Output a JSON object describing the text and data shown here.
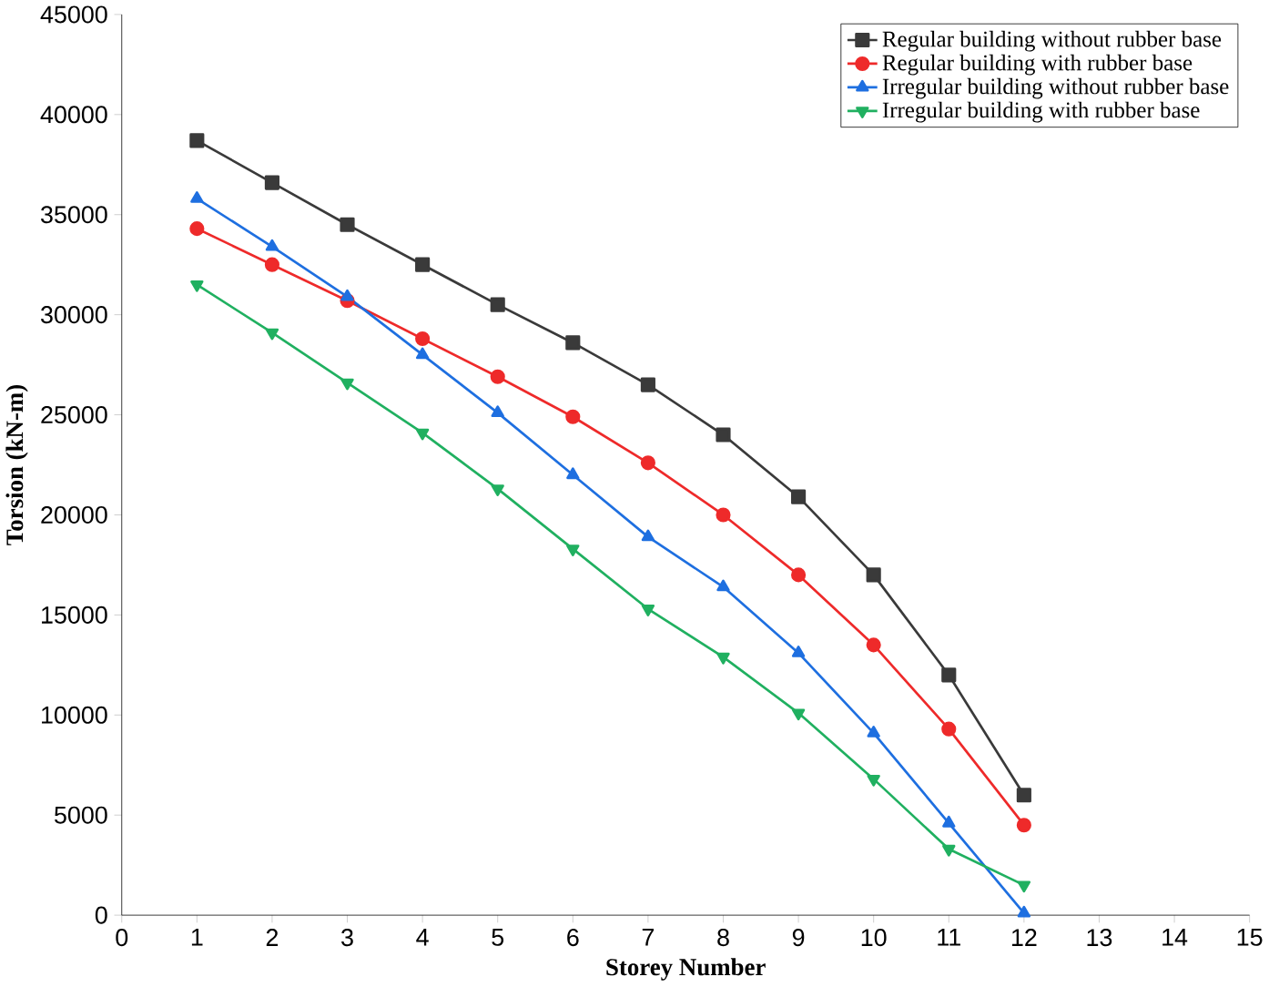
{
  "chart_data": {
    "type": "line",
    "xlabel": "Storey Number",
    "ylabel": "Torsion (kN-m)",
    "x": [
      1,
      2,
      3,
      4,
      5,
      6,
      7,
      8,
      9,
      10,
      11,
      12
    ],
    "xlim": [
      0,
      15
    ],
    "xticks": [
      0,
      1,
      2,
      3,
      4,
      5,
      6,
      7,
      8,
      9,
      10,
      11,
      12,
      13,
      14,
      15
    ],
    "ylim": [
      0,
      45000
    ],
    "yticks": [
      0,
      5000,
      10000,
      15000,
      20000,
      25000,
      30000,
      35000,
      40000,
      45000
    ],
    "legend": "top right",
    "grid": false,
    "line_style": "solid",
    "series": [
      {
        "name": "Regular building without rubber base",
        "color": "#3a3a3a",
        "marker": "square",
        "values": [
          38700,
          36600,
          34500,
          32500,
          30500,
          28600,
          26500,
          24000,
          20900,
          17000,
          12000,
          6000
        ]
      },
      {
        "name": "Regular building with rubber base",
        "color": "#ee2a2a",
        "marker": "circle",
        "values": [
          34300,
          32500,
          30700,
          28800,
          26900,
          24900,
          22600,
          20000,
          17000,
          13500,
          9300,
          4500
        ]
      },
      {
        "name": "Irregular building without rubber base",
        "color": "#1e6fe0",
        "marker": "triangle",
        "values": [
          35800,
          33400,
          30900,
          28000,
          25100,
          22000,
          18900,
          16400,
          13100,
          9100,
          4600,
          100
        ]
      },
      {
        "name": "Irregular building with rubber base",
        "color": "#20b060",
        "marker": "triangle down",
        "values": [
          31500,
          29100,
          26600,
          24100,
          21300,
          18300,
          15300,
          12900,
          10100,
          6800,
          3300,
          1500
        ]
      }
    ]
  }
}
